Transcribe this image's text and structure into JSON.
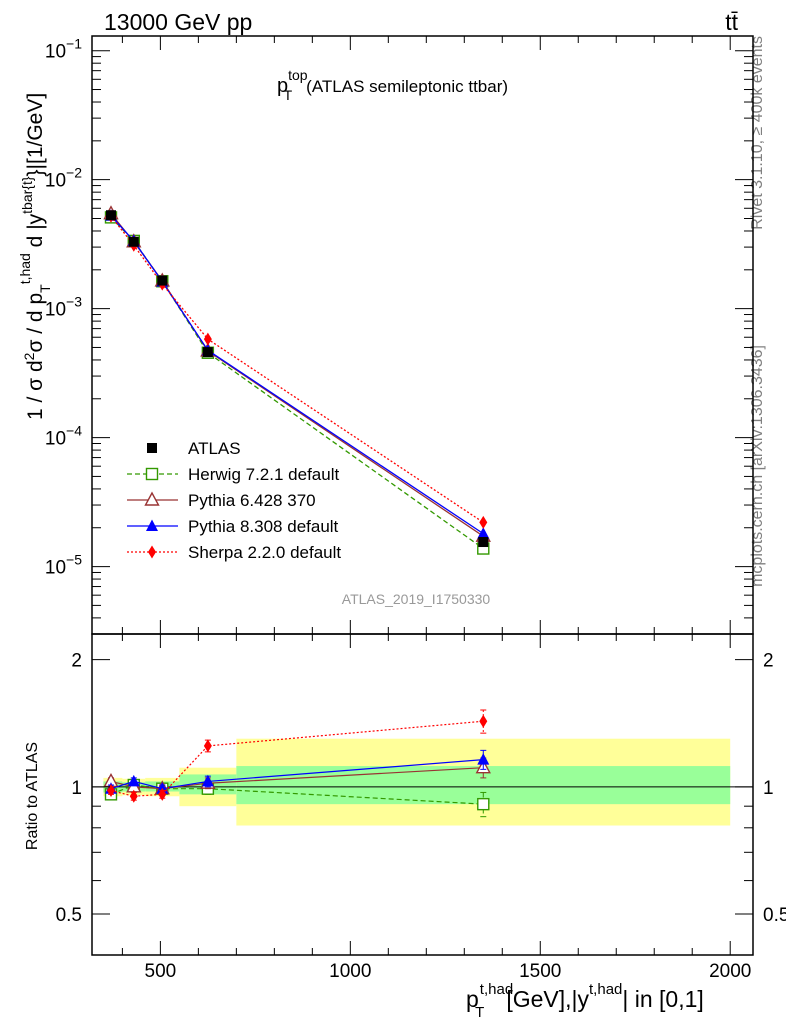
{
  "header": {
    "energy_label": "13000 GeV pp",
    "process_label": "tt̄",
    "rivet_label": "Rivet 3.1.10, ≥ 400k events",
    "mcplots_label": "mcplots.cern.ch [arXiv:1306.3436]",
    "analysis_id": "ATLAS_2019_I1750330"
  },
  "colors": {
    "atlas": "#000000",
    "herwig": "#339900",
    "pythia6": "#993333",
    "pythia8": "#0000ff",
    "sherpa": "#ff0000",
    "band_inner": "#99ff99",
    "band_outer": "#ffff99"
  },
  "chart_data": [
    {
      "type": "scatter",
      "panel": "main",
      "title_main": "p",
      "title_sup": "top",
      "title_sub": "T",
      "title_rest": "(ATLAS semileptonic ttbar)",
      "ylabel": "1 / σ d²σ / d p_T^{t,had} d |y^{tbar{t}}|[1/GeV]",
      "yscale": "log",
      "ylim": [
        3e-06,
        0.13
      ],
      "xlim": [
        320,
        2060
      ],
      "ytick_labels": [
        {
          "base": "10",
          "exp": "−1",
          "value": 0.1
        },
        {
          "base": "10",
          "exp": "−2",
          "value": 0.01
        },
        {
          "base": "10",
          "exp": "−3",
          "value": 0.001
        },
        {
          "base": "10",
          "exp": "−4",
          "value": 0.0001
        },
        {
          "base": "10",
          "exp": "−5",
          "value": 1e-05
        }
      ],
      "x": [
        370,
        430,
        505,
        625,
        1350
      ],
      "series": [
        {
          "key": "atlas",
          "name": "ATLAS",
          "style": "data",
          "values": [
            0.0053,
            0.0033,
            0.00165,
            0.00046,
            1.55e-05
          ]
        },
        {
          "key": "herwig",
          "name": "Herwig 7.2.1 default",
          "style": "open-square",
          "values": [
            0.0051,
            0.00335,
            0.00163,
            0.000455,
            1.38e-05
          ]
        },
        {
          "key": "pythia6",
          "name": "Pythia 6.428 370",
          "style": "open-triangle",
          "values": [
            0.00545,
            0.0033,
            0.00164,
            0.00047,
            1.72e-05
          ]
        },
        {
          "key": "pythia8",
          "name": "Pythia 8.308 default",
          "style": "filled-triangle",
          "values": [
            0.00525,
            0.00335,
            0.00162,
            0.000475,
            1.8e-05
          ]
        },
        {
          "key": "sherpa",
          "name": "Sherpa 2.2.0 default",
          "style": "diamond",
          "values": [
            0.0052,
            0.0031,
            0.00155,
            0.00058,
            2.2e-05
          ]
        }
      ]
    },
    {
      "type": "scatter",
      "panel": "ratio",
      "ylabel": "Ratio to ATLAS",
      "ylim": [
        0.4,
        2.3
      ],
      "xlim": [
        320,
        2060
      ],
      "xlabel_main": "p",
      "xlabel_sup": "t,had",
      "xlabel_sub": "T",
      "xlabel_rest": "[GeV],|y",
      "xlabel_sup2": "t,had",
      "xlabel_end": "| in [0,1]",
      "xtick_labels": [
        "500",
        "1000",
        "1500",
        "2000"
      ],
      "xtick_values": [
        500,
        1000,
        1500,
        2000
      ],
      "ytick_labels": [
        "0.5",
        "1",
        "2"
      ],
      "ytick_values": [
        0.5,
        1,
        2
      ],
      "bands": [
        {
          "xmin": 350,
          "xmax": 400,
          "inner": [
            0.97,
            1.03
          ],
          "outer": [
            0.95,
            1.05
          ]
        },
        {
          "xmin": 400,
          "xmax": 460,
          "inner": [
            0.975,
            1.025
          ],
          "outer": [
            0.955,
            1.045
          ]
        },
        {
          "xmin": 460,
          "xmax": 550,
          "inner": [
            0.975,
            1.03
          ],
          "outer": [
            0.95,
            1.05
          ]
        },
        {
          "xmin": 550,
          "xmax": 700,
          "inner": [
            0.96,
            1.07
          ],
          "outer": [
            0.9,
            1.11
          ]
        },
        {
          "xmin": 700,
          "xmax": 2000,
          "inner": [
            0.91,
            1.12
          ],
          "outer": [
            0.81,
            1.3
          ]
        }
      ],
      "x": [
        370,
        430,
        505,
        625,
        1350
      ],
      "series": [
        {
          "key": "herwig",
          "name": "Herwig 7.2.1 default",
          "values": [
            0.96,
            1.01,
            0.99,
            0.99,
            0.91
          ],
          "errors": [
            0.02,
            0.03,
            0.02,
            0.03,
            0.06
          ]
        },
        {
          "key": "pythia6",
          "name": "Pythia 6.428 370",
          "values": [
            1.03,
            1.0,
            0.99,
            1.02,
            1.11
          ],
          "errors": [
            0.02,
            0.02,
            0.02,
            0.03,
            0.06
          ]
        },
        {
          "key": "pythia8",
          "name": "Pythia 8.308 default",
          "values": [
            0.99,
            1.03,
            0.99,
            1.03,
            1.16
          ],
          "errors": [
            0.02,
            0.02,
            0.02,
            0.03,
            0.06
          ]
        },
        {
          "key": "sherpa",
          "name": "Sherpa 2.2.0 default",
          "values": [
            0.98,
            0.95,
            0.96,
            1.25,
            1.43
          ],
          "errors": [
            0.02,
            0.02,
            0.02,
            0.04,
            0.09
          ]
        }
      ]
    }
  ]
}
